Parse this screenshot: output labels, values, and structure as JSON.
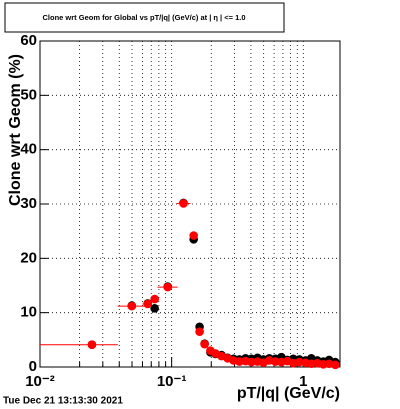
{
  "chart_data": {
    "type": "scatter",
    "title": "Clone wrt Geom for Global vs pT/|q| (GeV/c) at | η | <= 1.0",
    "x_label": "pT/|q| (GeV/c)",
    "y_label": "Clone wrt Geom (%)",
    "footer": "Tue Dec 21 13:13:30 2021",
    "xlog": true,
    "grid": true,
    "xlim": [
      0.01,
      1.9
    ],
    "ylim": [
      0,
      60
    ],
    "xticks": [
      {
        "value": 0.01,
        "label": "10⁻²"
      },
      {
        "value": 0.1,
        "label": "10⁻¹"
      },
      1
    ],
    "xminorticks": [
      0.02,
      0.03,
      0.04,
      0.05,
      0.06,
      0.07,
      0.08,
      0.09,
      0.2,
      0.3,
      0.4,
      0.5,
      0.6,
      0.7,
      0.8,
      0.9
    ],
    "yticks": [
      0,
      10,
      20,
      30,
      40,
      50,
      60
    ],
    "series": [
      {
        "color": "#000000",
        "x": [
          0.0248,
          0.0498,
          0.0658,
          0.0743,
          0.0933,
          0.123,
          0.147,
          0.163,
          0.178,
          0.197,
          0.215,
          0.239,
          0.266,
          0.295,
          0.327,
          0.364,
          0.404,
          0.449,
          0.498,
          0.552,
          0.614,
          0.681,
          0.757,
          0.84,
          0.933,
          1.04,
          1.15,
          1.28,
          1.42,
          1.57,
          1.75
        ],
        "values": [
          4.1,
          11.3,
          11.7,
          10.8,
          14.8,
          30.2,
          23.5,
          7.4,
          4.3,
          2.7,
          2.4,
          2.2,
          1.7,
          1.5,
          1.4,
          1.6,
          1.5,
          1.7,
          1.4,
          1.6,
          1.5,
          1.8,
          1.3,
          1.5,
          1.4,
          1.2,
          1.6,
          1.2,
          1.0,
          1.3,
          0.9
        ]
      },
      {
        "color": "#ff0000",
        "x": [
          0.0248,
          0.0498,
          0.0658,
          0.0743,
          0.0933,
          0.123,
          0.147,
          0.163,
          0.178,
          0.197,
          0.215,
          0.239,
          0.266,
          0.295,
          0.327,
          0.364,
          0.404,
          0.449,
          0.498,
          0.552,
          0.614,
          0.681,
          0.757,
          0.84,
          0.933,
          1.04,
          1.15,
          1.28,
          1.42,
          1.57,
          1.75
        ],
        "values": [
          4.1,
          11.2,
          11.6,
          12.5,
          14.7,
          30.1,
          24.2,
          6.5,
          4.2,
          3.0,
          2.5,
          2.0,
          1.6,
          1.2,
          1.0,
          1.1,
          0.9,
          1.0,
          0.8,
          1.2,
          1.0,
          0.9,
          1.1,
          0.7,
          0.9,
          0.8,
          0.6,
          0.7,
          0.5,
          0.6,
          0.4
        ],
        "xlow": [
          0.01,
          0.039,
          0.06,
          null,
          0.078,
          0.109,
          null,
          null,
          null,
          null,
          null,
          null,
          null,
          null,
          null,
          null,
          null,
          null,
          null,
          null,
          null,
          null,
          null,
          null,
          null,
          null,
          null,
          null,
          null,
          null,
          null
        ],
        "xhigh": [
          0.039,
          0.0647,
          0.07,
          null,
          0.111,
          0.139,
          null,
          null,
          null,
          null,
          null,
          null,
          null,
          null,
          null,
          null,
          null,
          null,
          null,
          null,
          null,
          null,
          null,
          null,
          null,
          null,
          null,
          null,
          null,
          null,
          null
        ]
      }
    ]
  }
}
